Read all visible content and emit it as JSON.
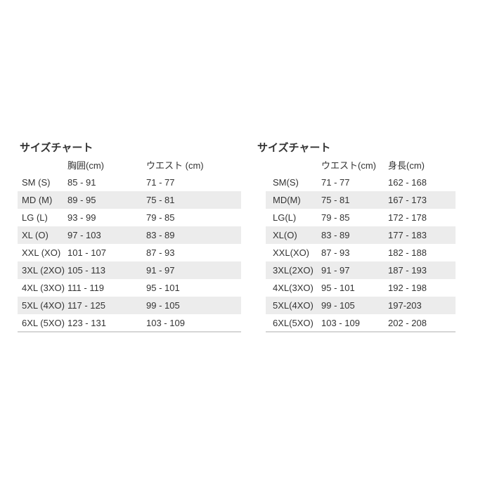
{
  "colors": {
    "text": "#333333",
    "stripe": "#ececec",
    "border": "#d6d6d6",
    "background": "#ffffff"
  },
  "chart_data": [
    {
      "type": "table",
      "title": "サイズチャート",
      "columns": [
        "",
        "胸囲(cm)",
        "ウエスト (cm)"
      ],
      "rows": [
        [
          "SM (S)",
          "85 - 91",
          "71 - 77"
        ],
        [
          "MD (M)",
          "89 - 95",
          "75 - 81"
        ],
        [
          "LG (L)",
          "93 - 99",
          "79 - 85"
        ],
        [
          "XL (O)",
          "97 - 103",
          "83 - 89"
        ],
        [
          "XXL (XO)",
          "101 - 107",
          "87 - 93"
        ],
        [
          "3XL (2XO)",
          "105 - 113",
          "91 - 97"
        ],
        [
          "4XL (3XO)",
          "111 - 119",
          "95 - 101"
        ],
        [
          "5XL (4XO)",
          "117 - 125",
          "99 - 105"
        ],
        [
          "6XL (5XO)",
          "123 - 131",
          "103 - 109"
        ]
      ]
    },
    {
      "type": "table",
      "title": "サイズチャート",
      "columns": [
        "",
        "ウエスト(cm)",
        "身長(cm)"
      ],
      "rows": [
        [
          "SM(S)",
          "71 - 77",
          "162 - 168"
        ],
        [
          "MD(M)",
          "75 - 81",
          "167 - 173"
        ],
        [
          "LG(L)",
          "79 - 85",
          "172 - 178"
        ],
        [
          "XL(O)",
          "83 - 89",
          "177 - 183"
        ],
        [
          "XXL(XO)",
          "87 - 93",
          "182 - 188"
        ],
        [
          "3XL(2XO)",
          "91 - 97",
          "187 - 193"
        ],
        [
          "4XL(3XO)",
          "95 - 101",
          "192 - 198"
        ],
        [
          "5XL(4XO)",
          "99 - 105",
          "197-203"
        ],
        [
          "6XL(5XO)",
          "103 - 109",
          "202 - 208"
        ]
      ]
    }
  ]
}
